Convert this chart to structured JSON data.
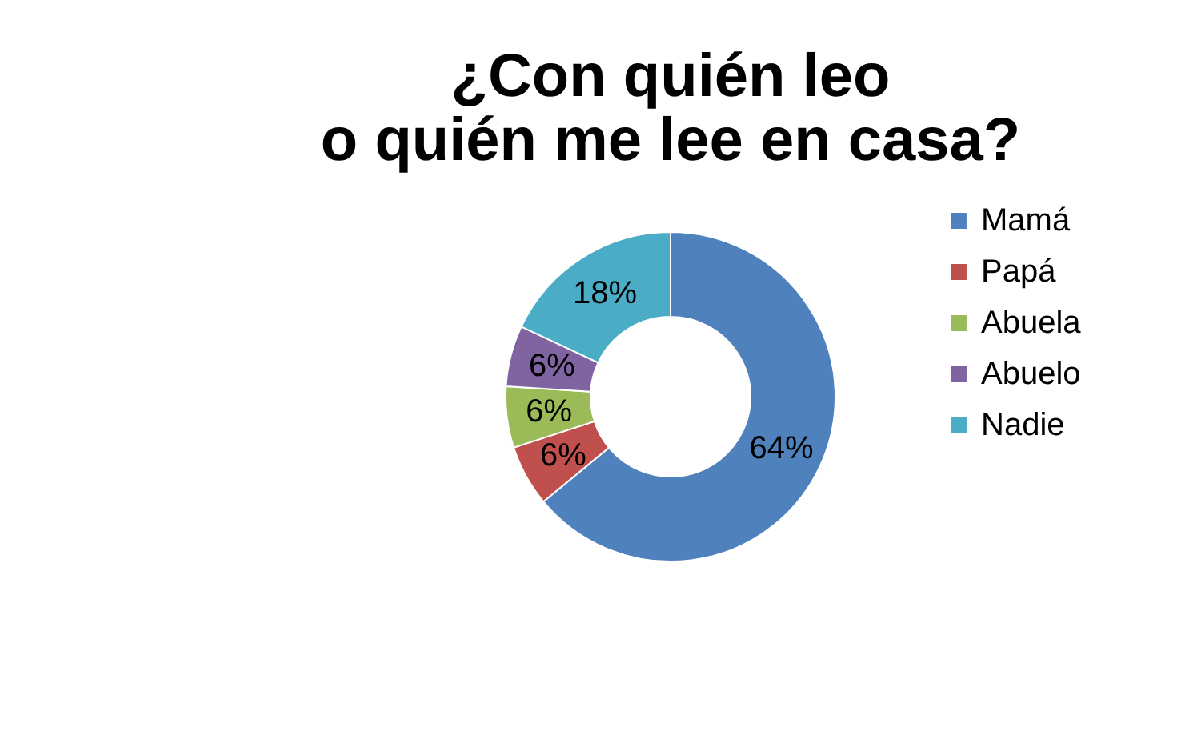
{
  "chart_data": {
    "type": "donut",
    "title": "¿Con quién leo o quién me lee en casa?",
    "categories": [
      "Mamá",
      "Papá",
      "Abuela",
      "Abuelo",
      "Nadie"
    ],
    "values": [
      64,
      6,
      6,
      6,
      18
    ],
    "colors": [
      "#4f81bd",
      "#c0504d",
      "#9bbb59",
      "#8064a2",
      "#4bacc6"
    ],
    "value_labels": [
      "64%",
      "6%",
      "6%",
      "6%",
      "18%"
    ],
    "legend": "right"
  }
}
